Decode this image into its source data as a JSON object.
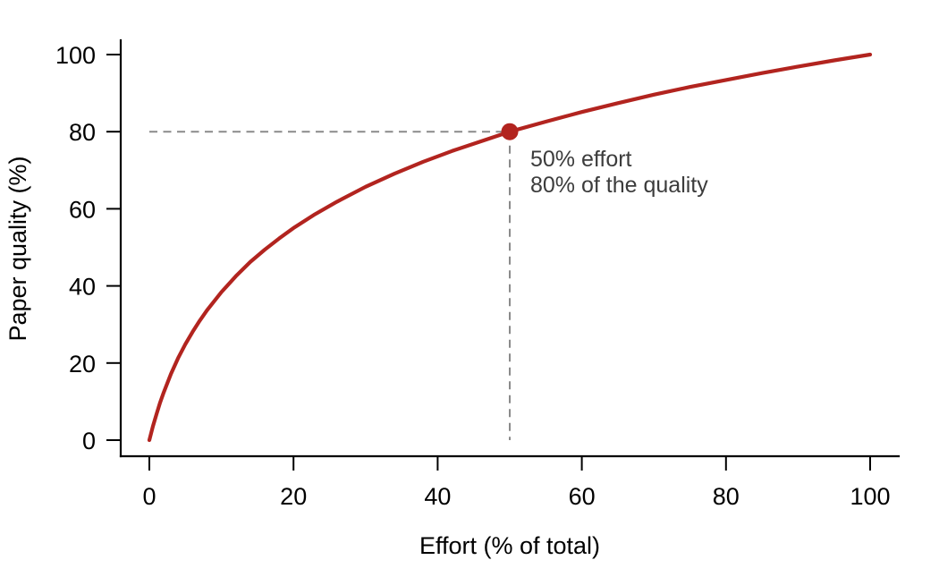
{
  "figure": {
    "background": "#FFFFFF"
  },
  "chart_data": {
    "type": "line",
    "title": "",
    "xlabel": "Effort (% of total)",
    "ylabel": "Paper quality (%)",
    "xlim": [
      0,
      100
    ],
    "ylim": [
      0,
      100
    ],
    "x_ticks": [
      0,
      20,
      40,
      60,
      80,
      100
    ],
    "y_ticks": [
      0,
      20,
      40,
      60,
      80,
      100
    ],
    "grid": false,
    "legend": false,
    "axis_color": "#000000",
    "tick_label_color": "#000000",
    "series": [
      {
        "name": "paper-quality-vs-effort",
        "color": "#B2241F",
        "x": [
          0,
          0.5,
          1,
          1.5,
          2,
          3,
          4,
          5,
          6,
          7,
          8,
          10,
          12,
          14,
          16,
          18,
          20,
          23,
          26,
          30,
          34,
          38,
          42,
          46,
          50,
          55,
          60,
          65,
          70,
          75,
          80,
          85,
          90,
          95,
          100
        ],
        "y": [
          0,
          3.6,
          6.8,
          9.8,
          12.4,
          17.2,
          21.3,
          24.9,
          28.1,
          31.0,
          33.7,
          38.4,
          42.5,
          46.2,
          49.4,
          52.3,
          55.0,
          58.6,
          61.8,
          65.7,
          69.1,
          72.2,
          75.0,
          77.5,
          80.0,
          82.6,
          85.1,
          87.4,
          89.6,
          91.6,
          93.4,
          95.2,
          96.9,
          98.5,
          100.0
        ]
      }
    ],
    "annotation": {
      "point": {
        "x": 50,
        "y": 80
      },
      "marker_color": "#B2241F",
      "marker_radius": 9.5,
      "guide_color": "#8A8A8A",
      "text_color": "#3C3C3C",
      "lines": [
        "50% effort",
        "80% of the quality"
      ]
    }
  }
}
